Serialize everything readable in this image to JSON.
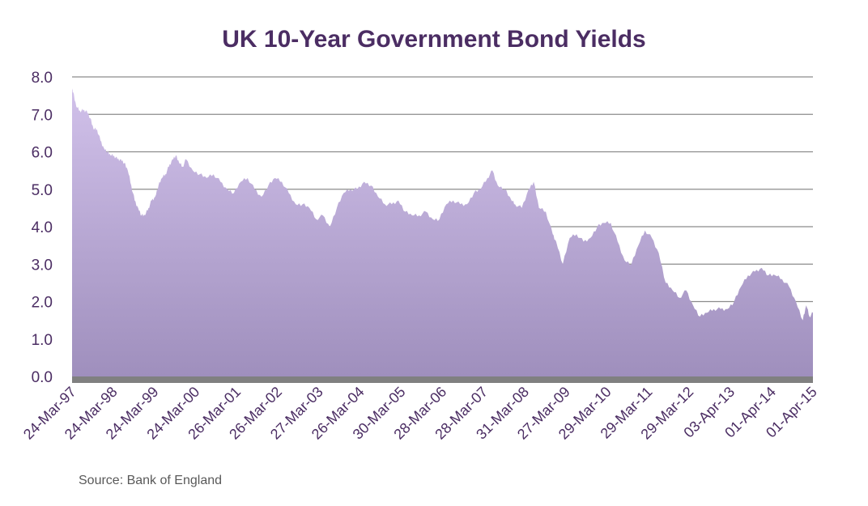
{
  "chart_data": {
    "type": "area",
    "title": "UK 10-Year Government Bond Yields",
    "xlabel": "",
    "ylabel": "",
    "source": "Source: Bank of England",
    "ylim": [
      0,
      8
    ],
    "y_ticks": [
      "0.0",
      "1.0",
      "2.0",
      "3.0",
      "4.0",
      "5.0",
      "6.0",
      "7.0",
      "8.0"
    ],
    "x_tick_labels": [
      "24-Mar-97",
      "24-Mar-98",
      "24-Mar-99",
      "24-Mar-00",
      "26-Mar-01",
      "26-Mar-02",
      "27-Mar-03",
      "26-Mar-04",
      "30-Mar-05",
      "28-Mar-06",
      "28-Mar-07",
      "31-Mar-08",
      "27-Mar-09",
      "29-Mar-10",
      "29-Mar-11",
      "29-Mar-12",
      "03-Apr-13",
      "01-Apr-14",
      "01-Apr-15"
    ],
    "grid": true,
    "legend": "none",
    "colors": {
      "title": "#4b2d63",
      "axis_text": "#4b2d63",
      "source_text": "#595959",
      "gridline": "#8c8c8c",
      "baseline": "#808080",
      "fill_top": "#d1c1ea",
      "fill_bottom": "#9f8fbd"
    },
    "series": [
      {
        "x": [
          "1997-03-24",
          "1997-04-01",
          "1997-05-01",
          "1997-06-01",
          "1997-07-01",
          "1997-08-01",
          "1997-09-01",
          "1997-10-01",
          "1997-11-01",
          "1997-12-01",
          "1998-01-01",
          "1998-02-01",
          "1998-03-01",
          "1998-04-01",
          "1998-05-01",
          "1998-06-01",
          "1998-07-01",
          "1998-08-01",
          "1998-09-01",
          "1998-10-01",
          "1998-11-01",
          "1998-12-01",
          "1999-01-01",
          "1999-02-01",
          "1999-03-01",
          "1999-04-01",
          "1999-05-01",
          "1999-06-01",
          "1999-07-01",
          "1999-08-01",
          "1999-09-01",
          "1999-10-01",
          "1999-11-01",
          "1999-12-01",
          "2000-01-01",
          "2000-03-01",
          "2000-05-01",
          "2000-07-01",
          "2000-09-01",
          "2000-11-01",
          "2001-01-01",
          "2001-03-01",
          "2001-05-01",
          "2001-07-01",
          "2001-09-01",
          "2001-11-01",
          "2002-01-01",
          "2002-03-01",
          "2002-05-01",
          "2002-07-01",
          "2002-09-01",
          "2002-11-01",
          "2003-01-01",
          "2003-03-01",
          "2003-05-01",
          "2003-07-01",
          "2003-09-01",
          "2003-11-01",
          "2004-01-01",
          "2004-03-01",
          "2004-05-01",
          "2004-07-01",
          "2004-09-01",
          "2004-11-01",
          "2005-01-01",
          "2005-03-01",
          "2005-05-01",
          "2005-07-01",
          "2005-09-01",
          "2005-11-01",
          "2006-01-01",
          "2006-03-01",
          "2006-05-01",
          "2006-07-01",
          "2006-09-01",
          "2006-11-01",
          "2007-01-01",
          "2007-03-01",
          "2007-05-01",
          "2007-06-15",
          "2007-08-01",
          "2007-10-01",
          "2007-12-01",
          "2008-01-01",
          "2008-03-01",
          "2008-05-01",
          "2008-06-15",
          "2008-08-01",
          "2008-10-01",
          "2008-12-01",
          "2009-01-01",
          "2009-03-01",
          "2009-05-01",
          "2009-07-01",
          "2009-09-01",
          "2009-11-01",
          "2010-01-01",
          "2010-03-01",
          "2010-05-01",
          "2010-07-01",
          "2010-09-01",
          "2010-11-01",
          "2011-01-01",
          "2011-03-01",
          "2011-05-01",
          "2011-07-01",
          "2011-09-01",
          "2011-11-01",
          "2012-01-01",
          "2012-03-01",
          "2012-05-01",
          "2012-07-01",
          "2012-09-01",
          "2012-11-01",
          "2013-01-01",
          "2013-03-01",
          "2013-05-01",
          "2013-07-01",
          "2013-09-01",
          "2013-11-01",
          "2014-01-01",
          "2014-03-01",
          "2014-05-01",
          "2014-07-01",
          "2014-09-01",
          "2014-11-01",
          "2015-01-01",
          "2015-02-01",
          "2015-03-01",
          "2015-04-01"
        ],
        "y": [
          7.7,
          7.6,
          7.2,
          7.1,
          7.1,
          7.1,
          6.9,
          6.6,
          6.6,
          6.3,
          6.1,
          6.0,
          5.9,
          5.9,
          5.8,
          5.8,
          5.7,
          5.5,
          5.1,
          4.7,
          4.5,
          4.3,
          4.3,
          4.5,
          4.7,
          4.8,
          5.1,
          5.3,
          5.4,
          5.6,
          5.8,
          5.9,
          5.7,
          5.6,
          5.8,
          5.5,
          5.4,
          5.3,
          5.4,
          5.2,
          5.0,
          4.9,
          5.2,
          5.3,
          5.0,
          4.8,
          5.1,
          5.3,
          5.2,
          4.9,
          4.6,
          4.6,
          4.5,
          4.2,
          4.3,
          4.0,
          4.5,
          4.9,
          5.0,
          5.0,
          5.2,
          5.1,
          4.8,
          4.6,
          4.6,
          4.7,
          4.4,
          4.3,
          4.3,
          4.4,
          4.2,
          4.2,
          4.6,
          4.7,
          4.6,
          4.6,
          4.9,
          5.0,
          5.3,
          5.5,
          5.1,
          5.0,
          4.7,
          4.6,
          4.5,
          5.0,
          5.2,
          4.5,
          4.4,
          3.8,
          3.6,
          3.0,
          3.7,
          3.8,
          3.6,
          3.7,
          4.0,
          4.1,
          4.1,
          3.6,
          3.1,
          3.0,
          3.5,
          3.9,
          3.7,
          3.3,
          2.5,
          2.3,
          2.1,
          2.3,
          1.9,
          1.6,
          1.7,
          1.8,
          1.8,
          1.8,
          2.0,
          2.4,
          2.7,
          2.8,
          2.9,
          2.7,
          2.7,
          2.6,
          2.4,
          2.0,
          1.5,
          1.9,
          1.6,
          1.7
        ]
      }
    ]
  }
}
